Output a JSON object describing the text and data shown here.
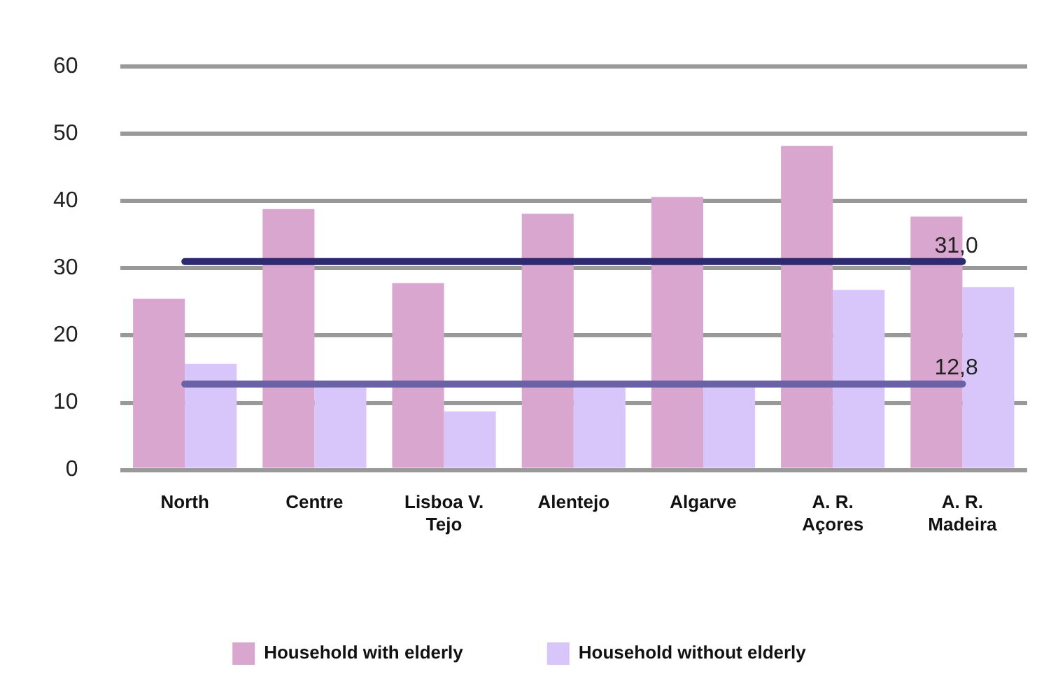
{
  "chart_data": {
    "type": "bar",
    "categories": [
      "North",
      "Centre",
      "Lisboa V. Tejo",
      "Alentejo",
      "Algarve",
      "A. R. Açores",
      "A. R. Madeira"
    ],
    "series": [
      {
        "name": "Household with elderly",
        "color": "#d8a6cf",
        "values": [
          25.5,
          38.8,
          27.8,
          38.1,
          40.6,
          48.2,
          37.7
        ]
      },
      {
        "name": "Household without elderly",
        "color": "#d8c6fb",
        "values": [
          15.8,
          12.3,
          8.7,
          12.3,
          12.3,
          26.8,
          27.2
        ]
      }
    ],
    "ref_lines": [
      {
        "axis": "y",
        "value": 31.0,
        "label": "31,0",
        "color": "#2e2a72"
      },
      {
        "axis": "y",
        "value": 12.8,
        "label": "12,8",
        "color": "#6a62a6"
      }
    ],
    "ylim": [
      0,
      60
    ],
    "yticks": [
      0,
      10,
      20,
      30,
      40,
      50,
      60
    ],
    "grid": "y",
    "legend": "bottom"
  }
}
